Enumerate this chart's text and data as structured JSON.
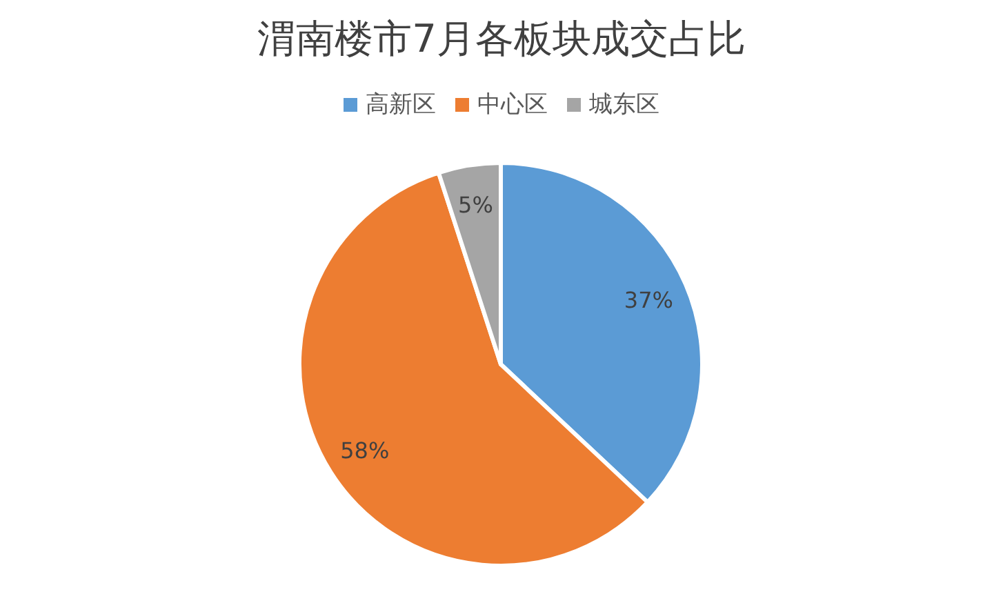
{
  "chart_data": {
    "type": "pie",
    "title": "渭南楼市7月各板块成交占比",
    "categories": [
      "高新区",
      "中心区",
      "城东区"
    ],
    "values": [
      37,
      58,
      5
    ],
    "colors": [
      "#5b9bd5",
      "#ed7d31",
      "#a5a5a5"
    ],
    "value_labels": [
      "37%",
      "58%",
      "5%"
    ],
    "legend": "top"
  }
}
